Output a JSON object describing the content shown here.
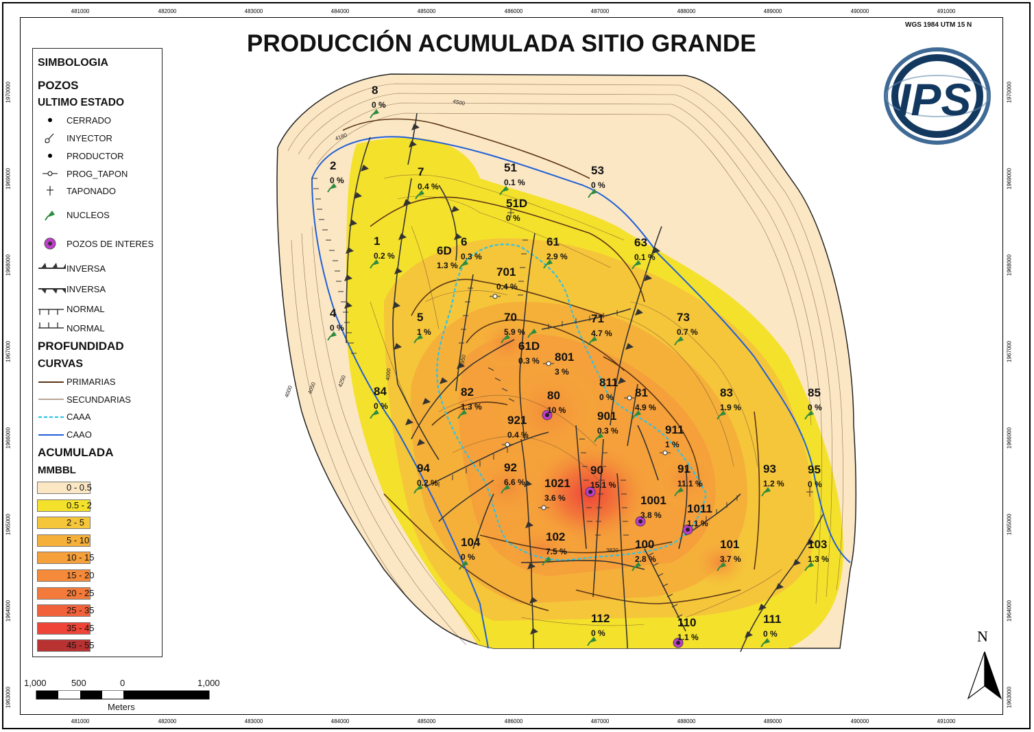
{
  "title": "PRODUCCIÓN ACUMULADA SITIO GRANDE",
  "crs": "WGS 1984 UTM 15 N",
  "logo_text": "IPS",
  "north_label": "N",
  "x_ticks": [
    "481000",
    "482000",
    "483000",
    "484000",
    "485000",
    "486000",
    "487000",
    "488000",
    "489000",
    "490000",
    "491000"
  ],
  "y_ticks": [
    "1970000",
    "1969000",
    "1968000",
    "1967000",
    "1966000",
    "1965000",
    "1964000",
    "1963000"
  ],
  "legend": {
    "simbologia": "SIMBOLOGIA",
    "pozos": "POZOS",
    "ultimo_estado": "ULTIMO ESTADO",
    "cerrado": "CERRADO",
    "inyector": "INYECTOR",
    "productor": "PRODUCTOR",
    "prog_tapon": "PROG_TAPON",
    "taponado": "TAPONADO",
    "nucleos": "NUCLEOS",
    "pozos_interes": "POZOS DE INTERES",
    "inversa1": "INVERSA",
    "inversa2": "INVERSA",
    "normal1": "NORMAL",
    "normal2": "NORMAL",
    "profundidad": "PROFUNDIDAD",
    "curvas": "CURVAS",
    "primarias": "PRIMARIAS",
    "secundarias": "SECUNDARIAS",
    "caaa": "CAAA",
    "caao": "CAAO",
    "acumulada": "ACUMULADA",
    "mmbbl": "MMBBL",
    "classes": [
      {
        "label": "0 - 0.5",
        "color": "#fbe7c4"
      },
      {
        "label": "0.5 - 2",
        "color": "#f4e12c"
      },
      {
        "label": "2 - 5",
        "color": "#f5c53a"
      },
      {
        "label": "5 - 10",
        "color": "#f5b03a"
      },
      {
        "label": "10 - 15",
        "color": "#f5a03a"
      },
      {
        "label": "15 - 20",
        "color": "#f48a3a"
      },
      {
        "label": "20 - 25",
        "color": "#f37a3a"
      },
      {
        "label": "25 - 35",
        "color": "#f1623a"
      },
      {
        "label": "35 - 45",
        "color": "#ee4538"
      },
      {
        "label": "45 - 55",
        "color": "#b83232"
      }
    ]
  },
  "contour_labels": [
    "4500",
    "4180",
    "4000",
    "3950",
    "3820",
    "4250",
    "4050",
    "4000"
  ],
  "wells": [
    {
      "name": "8",
      "pct": "0 %"
    },
    {
      "name": "2",
      "pct": "0 %"
    },
    {
      "name": "7",
      "pct": "0.4 %"
    },
    {
      "name": "51",
      "pct": "0.1 %"
    },
    {
      "name": "53",
      "pct": "0 %"
    },
    {
      "name": "51D",
      "pct": "0 %"
    },
    {
      "name": "1",
      "pct": "0.2 %"
    },
    {
      "name": "6D",
      "pct": "1.3 %"
    },
    {
      "name": "6",
      "pct": "0.3 %"
    },
    {
      "name": "61",
      "pct": "2.9 %"
    },
    {
      "name": "63",
      "pct": "0.1 %"
    },
    {
      "name": "701",
      "pct": "0.4 %"
    },
    {
      "name": "4",
      "pct": "0 %"
    },
    {
      "name": "5",
      "pct": "1 %"
    },
    {
      "name": "70",
      "pct": "5.9 %"
    },
    {
      "name": "71",
      "pct": "4.7 %"
    },
    {
      "name": "73",
      "pct": "0.7 %"
    },
    {
      "name": "61D",
      "pct": "0.3 %"
    },
    {
      "name": "801",
      "pct": "3 %"
    },
    {
      "name": "84",
      "pct": "0 %"
    },
    {
      "name": "82",
      "pct": "1.3 %"
    },
    {
      "name": "80",
      "pct": "10 %"
    },
    {
      "name": "811",
      "pct": "0 %"
    },
    {
      "name": "81",
      "pct": "4.9 %"
    },
    {
      "name": "83",
      "pct": "1.9 %"
    },
    {
      "name": "85",
      "pct": "0 %"
    },
    {
      "name": "921",
      "pct": "0.4 %"
    },
    {
      "name": "901",
      "pct": "0.3 %"
    },
    {
      "name": "911",
      "pct": "1 %"
    },
    {
      "name": "94",
      "pct": "0.2 %"
    },
    {
      "name": "92",
      "pct": "6.6 %"
    },
    {
      "name": "1021",
      "pct": "3.6 %"
    },
    {
      "name": "90",
      "pct": "15.1 %"
    },
    {
      "name": "91",
      "pct": "11.1 %"
    },
    {
      "name": "93",
      "pct": "1.2 %"
    },
    {
      "name": "95",
      "pct": "0 %"
    },
    {
      "name": "1001",
      "pct": "3.8 %"
    },
    {
      "name": "1011",
      "pct": "1.1 %"
    },
    {
      "name": "104",
      "pct": "0 %"
    },
    {
      "name": "102",
      "pct": "7.5 %"
    },
    {
      "name": "100",
      "pct": "2.8 %"
    },
    {
      "name": "101",
      "pct": "3.7 %"
    },
    {
      "name": "103",
      "pct": "1.3 %"
    },
    {
      "name": "112",
      "pct": "0 %"
    },
    {
      "name": "110",
      "pct": "1.1 %"
    },
    {
      "name": "111",
      "pct": "0 %"
    }
  ],
  "scale": {
    "labels": [
      "1,000",
      "500",
      "0",
      "1,000"
    ],
    "units": "Meters"
  }
}
